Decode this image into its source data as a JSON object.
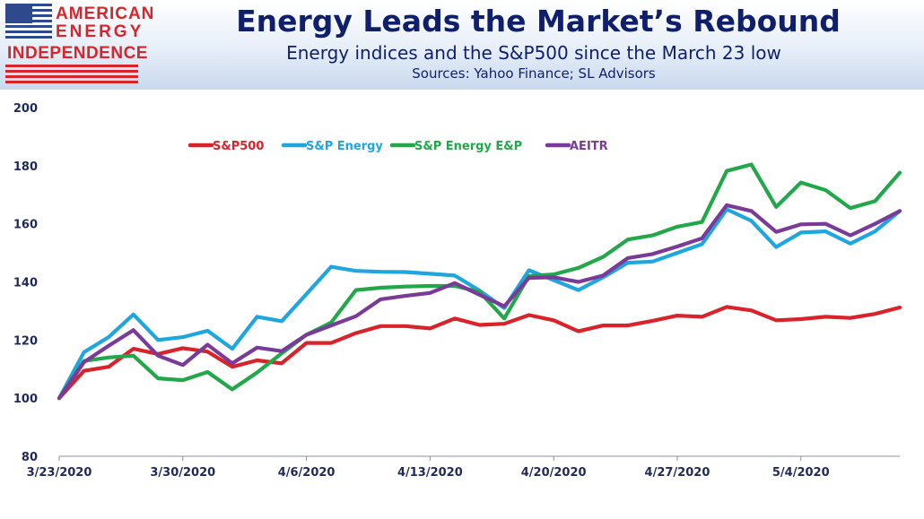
{
  "logo": {
    "line1": "AMERICAN",
    "line2": "ENERGY",
    "line3": "INDEPENDENCE"
  },
  "header": {
    "title": "Energy Leads the Market’s Rebound",
    "subtitle": "Energy indices and the S&P500 since the March 23 low",
    "sources": "Sources: Yahoo Finance; SL Advisors"
  },
  "colors": {
    "sp500": "#d9232b",
    "sp_energy": "#1fa6de",
    "sp_energy_ep": "#22a84a",
    "aeitr": "#7a3b98",
    "axis": "#1f2a5a"
  },
  "chart_data": {
    "type": "line",
    "title": "Energy Leads the Market’s Rebound",
    "xlabel": "",
    "ylabel": "",
    "ylim": [
      80,
      200
    ],
    "y_ticks": [
      80,
      100,
      120,
      140,
      160,
      180,
      200
    ],
    "x_tick_labels": [
      "3/23/2020",
      "3/30/2020",
      "4/6/2020",
      "4/13/2020",
      "4/20/2020",
      "4/27/2020",
      "5/4/2020"
    ],
    "x_tick_index": [
      0,
      5,
      10,
      15,
      20,
      25,
      30
    ],
    "legend_placement": "top-center",
    "grid": false,
    "x": [
      "3/23/2020",
      "3/24/2020",
      "3/25/2020",
      "3/26/2020",
      "3/27/2020",
      "3/30/2020",
      "3/31/2020",
      "4/1/2020",
      "4/2/2020",
      "4/3/2020",
      "4/6/2020",
      "4/7/2020",
      "4/8/2020",
      "4/9/2020",
      "4/10/2020",
      "4/13/2020",
      "4/14/2020",
      "4/15/2020",
      "4/16/2020",
      "4/17/2020",
      "4/20/2020",
      "4/21/2020",
      "4/22/2020",
      "4/23/2020",
      "4/24/2020",
      "4/27/2020",
      "4/28/2020",
      "4/29/2020",
      "4/30/2020",
      "5/1/2020",
      "5/4/2020",
      "5/5/2020",
      "5/6/2020",
      "5/7/2020",
      "5/8/2020"
    ],
    "series": [
      {
        "key": "sp500",
        "name": "S&P500",
        "values": [
          100,
          109.4,
          110.8,
          117.0,
          115.2,
          117.2,
          116.0,
          110.8,
          113.0,
          112.0,
          119.0,
          119.0,
          122.4,
          124.8,
          124.8,
          124.0,
          127.4,
          125.2,
          125.6,
          128.6,
          126.8,
          123.0,
          125.0,
          125.0,
          126.6,
          128.4,
          128.0,
          131.4,
          130.2,
          126.8,
          127.2,
          128.0,
          127.6,
          129.0,
          131.2
        ]
      },
      {
        "key": "sp_energy",
        "name": "S&P Energy",
        "values": [
          100,
          115.8,
          121.0,
          128.8,
          120.0,
          121.0,
          123.2,
          117.0,
          128.0,
          126.5,
          135.8,
          145.2,
          143.8,
          143.5,
          143.4,
          142.8,
          142.2,
          137.0,
          131.0,
          144.0,
          140.6,
          137.2,
          141.6,
          146.6,
          147.0,
          150.0,
          153.0,
          165.0,
          161.0,
          152.0,
          157.0,
          157.4,
          153.2,
          157.4,
          164.4
        ]
      },
      {
        "key": "sp_energy_ep",
        "name": "S&P Energy E&P",
        "values": [
          100,
          112.8,
          114.0,
          114.6,
          106.8,
          106.2,
          109.0,
          103.0,
          108.8,
          115.4,
          121.8,
          126.0,
          137.2,
          138.0,
          138.4,
          138.6,
          138.6,
          136.6,
          127.4,
          142.0,
          142.6,
          144.8,
          148.6,
          154.6,
          156.0,
          159.0,
          160.6,
          178.2,
          180.4,
          165.8,
          174.2,
          171.6,
          165.4,
          167.8,
          177.6
        ]
      },
      {
        "key": "aeitr",
        "name": "AEITR",
        "values": [
          100,
          112.4,
          118.0,
          123.4,
          114.6,
          111.4,
          118.4,
          112.0,
          117.4,
          116.2,
          121.8,
          125.0,
          128.2,
          134.0,
          135.2,
          136.2,
          139.6,
          135.6,
          131.6,
          141.4,
          141.6,
          140.0,
          142.2,
          148.2,
          149.6,
          152.2,
          155.0,
          166.4,
          164.4,
          157.2,
          159.8,
          160.0,
          156.0,
          160.0,
          164.4
        ]
      }
    ]
  }
}
